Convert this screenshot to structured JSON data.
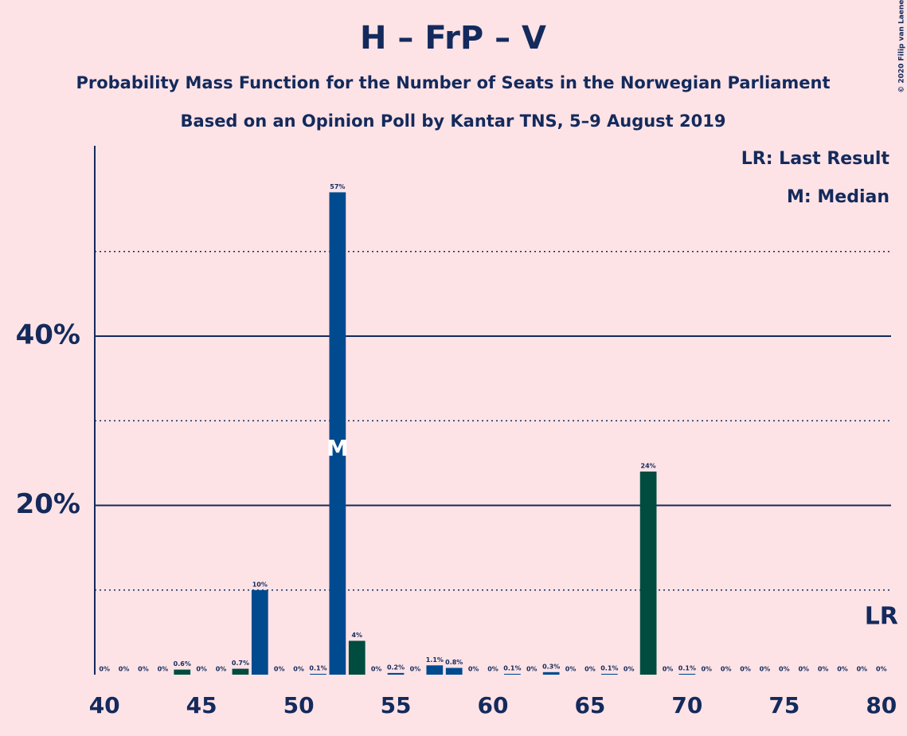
{
  "chart_data": {
    "type": "bar",
    "title": "H – FrP – V",
    "subtitle": "Probability Mass Function for the Number of Seats in the Norwegian Parliament",
    "subtitle2": "Based on an Opinion Poll by Kantar TNS, 5–9 August 2019",
    "legend": [
      "LR: Last Result",
      "M: Median"
    ],
    "copyright": "© 2020 Filip van Laenen",
    "x": [
      40,
      41,
      42,
      43,
      44,
      45,
      46,
      47,
      48,
      49,
      50,
      51,
      52,
      53,
      54,
      55,
      56,
      57,
      58,
      59,
      60,
      61,
      62,
      63,
      64,
      65,
      66,
      67,
      68,
      69,
      70,
      71,
      72,
      73,
      74,
      75,
      76,
      77,
      78,
      79,
      80
    ],
    "values": [
      0,
      0,
      0,
      0,
      0.6,
      0,
      0,
      0.7,
      10,
      0,
      0,
      0.1,
      57,
      4,
      0,
      0.2,
      0,
      1.1,
      0.8,
      0,
      0,
      0.1,
      0,
      0.3,
      0,
      0,
      0.1,
      0,
      24,
      0,
      0.1,
      0,
      0,
      0,
      0,
      0,
      0,
      0,
      0,
      0,
      0
    ],
    "value_labels": [
      "0%",
      "0%",
      "0%",
      "0%",
      "0.6%",
      "0%",
      "0%",
      "0.7%",
      "10%",
      "0%",
      "0%",
      "0.1%",
      "57%",
      "4%",
      "0%",
      "0.2%",
      "0%",
      "1.1%",
      "0.8%",
      "0%",
      "0%",
      "0.1%",
      "0%",
      "0.3%",
      "0%",
      "0%",
      "0.1%",
      "0%",
      "24%",
      "0%",
      "0.1%",
      "0%",
      "0%",
      "0%",
      "0%",
      "0%",
      "0%",
      "0%",
      "0%",
      "0%",
      "0%"
    ],
    "colors": [
      "#004a8f",
      "#004a8f",
      "#004a8f",
      "#004a8f",
      "#004c3f",
      "#004a8f",
      "#004a8f",
      "#004c3f",
      "#004a8f",
      "#004a8f",
      "#004a8f",
      "#004a8f",
      "#004a8f",
      "#004c3f",
      "#004a8f",
      "#004a8f",
      "#004a8f",
      "#004a8f",
      "#004a8f",
      "#004a8f",
      "#004a8f",
      "#004a8f",
      "#004a8f",
      "#004a8f",
      "#004a8f",
      "#004a8f",
      "#004a8f",
      "#004a8f",
      "#004c3f",
      "#004a8f",
      "#004a8f",
      "#004a8f",
      "#004a8f",
      "#004a8f",
      "#004a8f",
      "#004a8f",
      "#004a8f",
      "#004a8f",
      "#004a8f",
      "#004a8f",
      "#004a8f"
    ],
    "xlim": [
      39.5,
      80.5
    ],
    "xticks": [
      40,
      45,
      50,
      55,
      60,
      65,
      70,
      75,
      80
    ],
    "ylim": [
      0,
      62.5
    ],
    "yticks": [
      {
        "value": 20,
        "label": "20%"
      },
      {
        "value": 40,
        "label": "40%"
      }
    ],
    "minor_yticks": [
      10,
      30,
      50
    ],
    "median": {
      "x": 52,
      "label": "M"
    },
    "last_result": {
      "x": 80,
      "label": "LR"
    }
  }
}
